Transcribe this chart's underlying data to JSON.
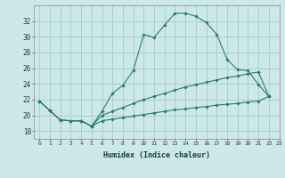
{
  "xlabel": "Humidex (Indice chaleur)",
  "background_color": "#cce8e8",
  "grid_color": "#aacfcf",
  "line_color": "#2e7b6e",
  "xlim": [
    -0.5,
    23
  ],
  "ylim": [
    17.0,
    34.0
  ],
  "yticks": [
    18,
    20,
    22,
    24,
    26,
    28,
    30,
    32
  ],
  "xticks": [
    0,
    1,
    2,
    3,
    4,
    5,
    6,
    7,
    8,
    9,
    10,
    11,
    12,
    13,
    14,
    15,
    16,
    17,
    18,
    19,
    20,
    21,
    22,
    23
  ],
  "series": [
    {
      "x": [
        0,
        1,
        2,
        3,
        4,
        5,
        6,
        7,
        8,
        9,
        10,
        11,
        12,
        13,
        14,
        15,
        16,
        17,
        18,
        19,
        20,
        21,
        22
      ],
      "y": [
        21.8,
        20.6,
        19.4,
        19.3,
        19.3,
        18.6,
        20.5,
        22.8,
        23.8,
        25.7,
        30.3,
        29.9,
        31.5,
        33.0,
        33.0,
        32.6,
        31.8,
        30.3,
        27.1,
        25.8,
        25.7,
        23.9,
        22.4
      ]
    },
    {
      "x": [
        0,
        1,
        2,
        3,
        4,
        5,
        6,
        7,
        8,
        9,
        10,
        11,
        12,
        13,
        14,
        15,
        16,
        17,
        18,
        19,
        20,
        21,
        22
      ],
      "y": [
        21.8,
        20.6,
        19.4,
        19.3,
        19.3,
        18.6,
        20.0,
        20.5,
        21.0,
        21.5,
        22.0,
        22.4,
        22.8,
        23.2,
        23.6,
        23.9,
        24.2,
        24.5,
        24.8,
        25.0,
        25.3,
        25.5,
        22.4
      ]
    },
    {
      "x": [
        0,
        1,
        2,
        3,
        4,
        5,
        6,
        7,
        8,
        9,
        10,
        11,
        12,
        13,
        14,
        15,
        16,
        17,
        18,
        19,
        20,
        21,
        22
      ],
      "y": [
        21.8,
        20.6,
        19.4,
        19.3,
        19.3,
        18.6,
        19.3,
        19.5,
        19.7,
        19.9,
        20.1,
        20.3,
        20.5,
        20.7,
        20.8,
        21.0,
        21.1,
        21.3,
        21.4,
        21.5,
        21.7,
        21.8,
        22.4
      ]
    }
  ]
}
